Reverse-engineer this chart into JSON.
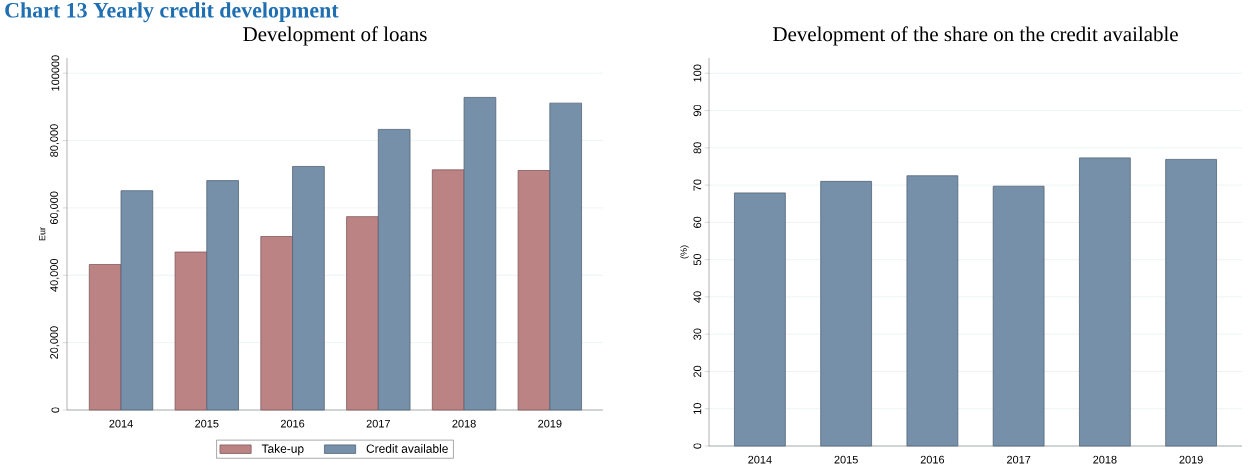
{
  "chart_data": [
    {
      "type": "bar",
      "title": "Development of loans",
      "annotations": [
        "Chart 13 Yearly credit development"
      ],
      "ylabel": "Eur",
      "categories": [
        "2014",
        "2015",
        "2016",
        "2017",
        "2018",
        "2019"
      ],
      "series": [
        {
          "name": "Take-up",
          "color": "#bc8384",
          "values": [
            43200,
            46900,
            51500,
            57400,
            71300,
            71100
          ]
        },
        {
          "name": "Credit available",
          "color": "#7790aa",
          "values": [
            65100,
            68100,
            72300,
            83300,
            92800,
            91100
          ]
        }
      ],
      "ylim": [
        0,
        104500
      ],
      "yticks": [
        0,
        {
          "value": 20000,
          "label": "20,000"
        },
        {
          "value": 40000,
          "label": "40,000"
        },
        {
          "value": 60000,
          "label": "60,000"
        },
        {
          "value": 80000,
          "label": "80,000"
        },
        100000
      ],
      "grid": "y",
      "legend": "bottom"
    },
    {
      "type": "bar",
      "title": "Development of the share on the credit available",
      "ylabel": "(%)",
      "categories": [
        "2014",
        "2015",
        "2016",
        "2017",
        "2018",
        "2019"
      ],
      "values": [
        67.9,
        71.0,
        72.5,
        69.7,
        77.3,
        76.9
      ],
      "color": "#7790aa",
      "ylim": [
        0,
        104.1
      ],
      "yticks": [
        0,
        10,
        20,
        30,
        40,
        50,
        60,
        70,
        80,
        90,
        100
      ],
      "grid": "y"
    }
  ]
}
